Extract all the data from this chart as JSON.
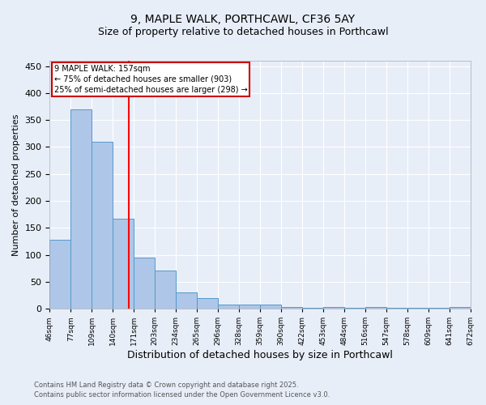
{
  "title1": "9, MAPLE WALK, PORTHCAWL, CF36 5AY",
  "title2": "Size of property relative to detached houses in Porthcawl",
  "xlabel": "Distribution of detached houses by size in Porthcawl",
  "ylabel": "Number of detached properties",
  "bin_labels": [
    "46sqm",
    "77sqm",
    "109sqm",
    "140sqm",
    "171sqm",
    "203sqm",
    "234sqm",
    "265sqm",
    "296sqm",
    "328sqm",
    "359sqm",
    "390sqm",
    "422sqm",
    "453sqm",
    "484sqm",
    "516sqm",
    "547sqm",
    "578sqm",
    "609sqm",
    "641sqm",
    "672sqm"
  ],
  "bar_heights": [
    128,
    370,
    310,
    167,
    95,
    70,
    30,
    20,
    8,
    8,
    8,
    3,
    2,
    3,
    1,
    3,
    1,
    1,
    1,
    3
  ],
  "bar_color": "#aec6e8",
  "bar_edge_color": "#5599cc",
  "red_line_x": 3.75,
  "annotation_line1": "9 MAPLE WALK: 157sqm",
  "annotation_line2": "← 75% of detached houses are smaller (903)",
  "annotation_line3": "25% of semi-detached houses are larger (298) →",
  "annotation_box_color": "#ffffff",
  "annotation_box_edge_color": "#cc0000",
  "ylim": [
    0,
    460
  ],
  "yticks": [
    0,
    50,
    100,
    150,
    200,
    250,
    300,
    350,
    400,
    450
  ],
  "footer1": "Contains HM Land Registry data © Crown copyright and database right 2025.",
  "footer2": "Contains public sector information licensed under the Open Government Licence v3.0.",
  "bg_color": "#e8eef8",
  "grid_color": "#ffffff",
  "title_fontsize": 10,
  "subtitle_fontsize": 9
}
